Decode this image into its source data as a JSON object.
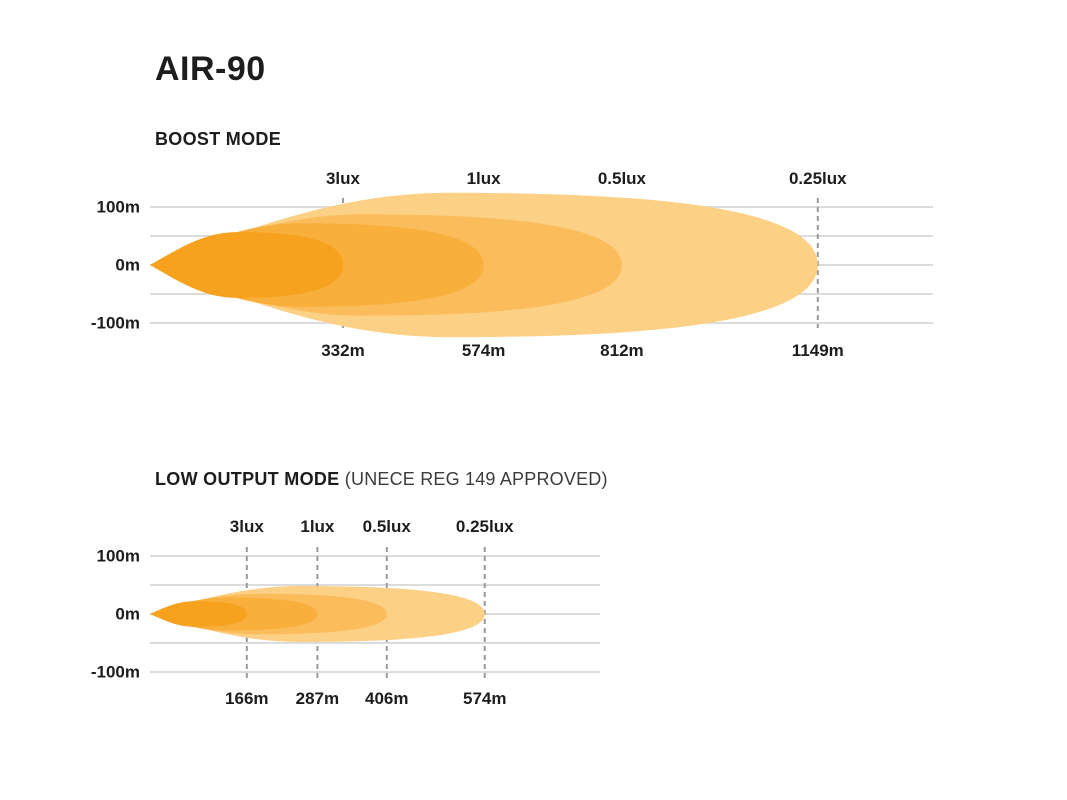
{
  "page": {
    "title": "AIR-90",
    "background": "#ffffff"
  },
  "styles": {
    "grid_color": "#dcdcdc",
    "dash_color": "#999999",
    "text_color": "#1d1d1d",
    "subtitle_color": "#3c3c3c"
  },
  "chart_data": [
    {
      "type": "area",
      "title": "BOOST MODE",
      "subtitle": "",
      "x_unit": "m",
      "y_axis": {
        "tick_labels": [
          "100m",
          "0m",
          "-100m"
        ],
        "tick_values_m": [
          100,
          0,
          -100
        ],
        "gridline_values_m": [
          100,
          50,
          0,
          -50,
          -100
        ],
        "range_m": [
          -100,
          100
        ]
      },
      "grid": true,
      "beams": [
        {
          "lux_label": "3lux",
          "distance_m": 332,
          "distance_label": "332m",
          "half_spread_m": 26,
          "color": "#f6a21e"
        },
        {
          "lux_label": "1lux",
          "distance_m": 574,
          "distance_label": "574m",
          "half_spread_m": 33,
          "color": "#f9af3b"
        },
        {
          "lux_label": "0.5lux",
          "distance_m": 812,
          "distance_label": "812m",
          "half_spread_m": 40,
          "color": "#fbbd5c"
        },
        {
          "lux_label": "0.25lux",
          "distance_m": 1149,
          "distance_label": "1149m",
          "half_spread_m": 57,
          "color": "#fcd186"
        }
      ]
    },
    {
      "type": "area",
      "title": "LOW OUTPUT MODE",
      "subtitle": "(UNECE REG 149 APPROVED)",
      "x_unit": "m",
      "y_axis": {
        "tick_labels": [
          "100m",
          "0m",
          "-100m"
        ],
        "tick_values_m": [
          100,
          0,
          -100
        ],
        "gridline_values_m": [
          100,
          50,
          0,
          -50,
          -100
        ],
        "range_m": [
          -100,
          100
        ]
      },
      "grid": true,
      "beams": [
        {
          "lux_label": "3lux",
          "distance_m": 166,
          "distance_label": "166m",
          "half_spread_m": 10,
          "color": "#f6a21e"
        },
        {
          "lux_label": "1lux",
          "distance_m": 287,
          "distance_label": "287m",
          "half_spread_m": 13,
          "color": "#f9af3b"
        },
        {
          "lux_label": "0.5lux",
          "distance_m": 406,
          "distance_label": "406m",
          "half_spread_m": 16,
          "color": "#fbbd5c"
        },
        {
          "lux_label": "0.25lux",
          "distance_m": 574,
          "distance_label": "574m",
          "half_spread_m": 22,
          "color": "#fcd186"
        }
      ]
    }
  ]
}
